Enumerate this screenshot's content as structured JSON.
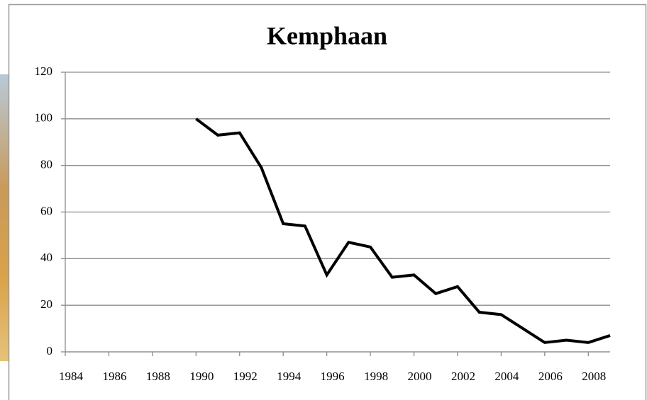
{
  "chart_data": {
    "type": "line",
    "title": "Kemphaan",
    "x": [
      1990,
      1991,
      1992,
      1993,
      1994,
      1995,
      1996,
      1997,
      1998,
      1999,
      2000,
      2001,
      2002,
      2003,
      2004,
      2005,
      2006,
      2007,
      2008,
      2009
    ],
    "series": [
      {
        "color": "#000000",
        "values": [
          100,
          93,
          94,
          79,
          55,
          54,
          33,
          47,
          45,
          32,
          33,
          25,
          28,
          17,
          16,
          10,
          4,
          5,
          4,
          7
        ]
      }
    ],
    "xlim": [
      1984,
      2009
    ],
    "xticks": [
      1984,
      1986,
      1988,
      1990,
      1992,
      1994,
      1996,
      1998,
      2000,
      2002,
      2004,
      2006,
      2008
    ],
    "ylim": [
      0,
      120
    ],
    "yticks": [
      0,
      20,
      40,
      60,
      80,
      100,
      120
    ],
    "grid": true
  }
}
